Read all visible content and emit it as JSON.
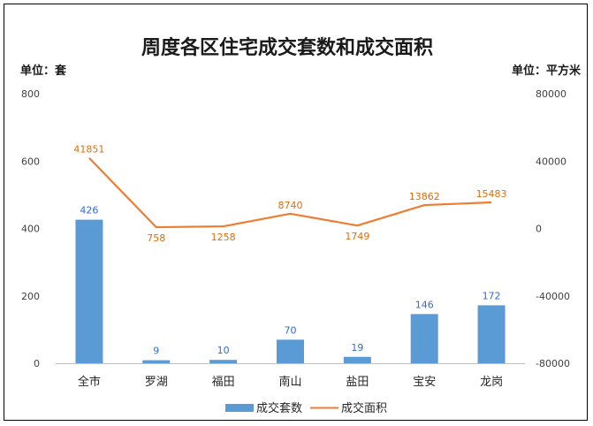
{
  "chart_data": {
    "type": "bar+line",
    "title": "周度各区住宅成交套数和成交面积",
    "left_unit": "单位：套",
    "right_unit": "单位：平方米",
    "categories": [
      "全市",
      "罗湖",
      "福田",
      "南山",
      "盐田",
      "宝安",
      "龙岗"
    ],
    "bar_series": {
      "name": "成交套数",
      "values": [
        426,
        9,
        10,
        70,
        19,
        146,
        172
      ],
      "color": "#5b9bd5",
      "axis": "left"
    },
    "line_series": {
      "name": "成交面积",
      "values": [
        41851,
        758,
        1258,
        8740,
        1749,
        13862,
        15483
      ],
      "color": "#ed7d31",
      "axis": "right"
    },
    "y_left": {
      "min": 0,
      "max": 800,
      "ticks": [
        "0",
        "200",
        "400",
        "600",
        "800"
      ]
    },
    "y_right": {
      "min": -80000,
      "max": 80000,
      "ticks": [
        "-80000",
        "-40000",
        "0",
        "40000",
        "80000"
      ]
    },
    "grid": false,
    "legend_position": "bottom"
  }
}
